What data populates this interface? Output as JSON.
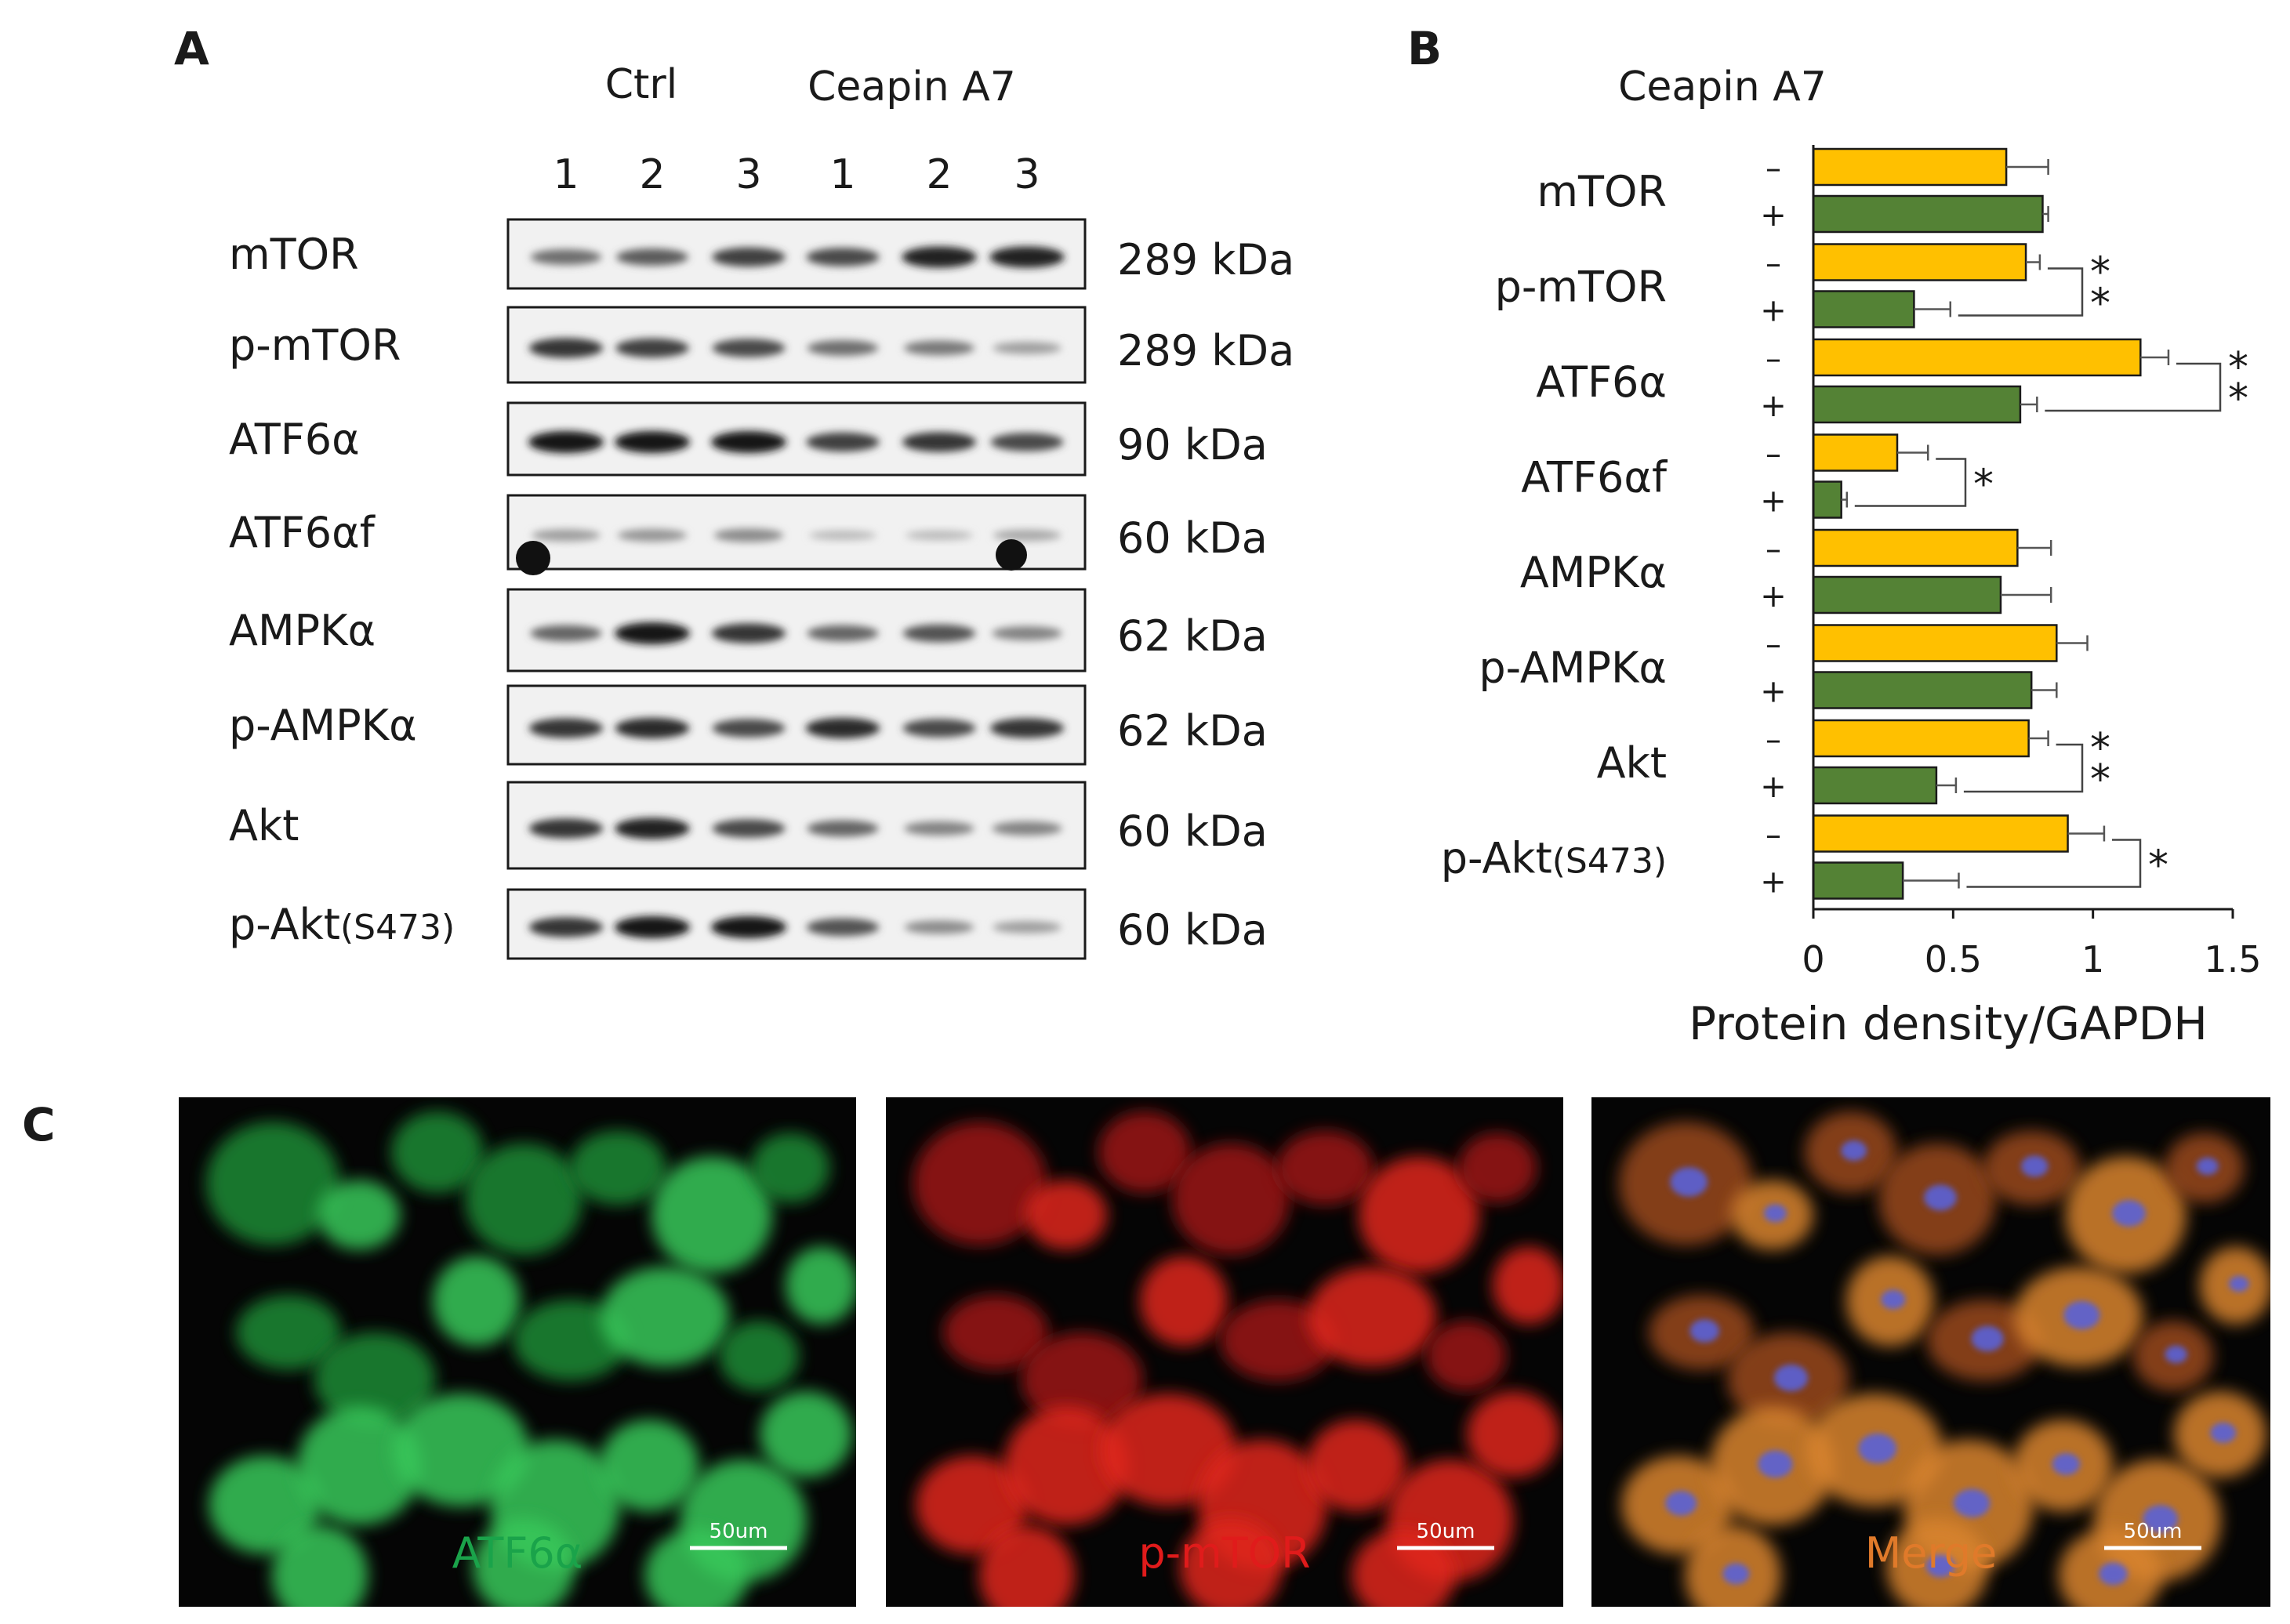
{
  "panels": {
    "a": "A",
    "b": "B",
    "c": "C"
  },
  "blot": {
    "group_labels": [
      "Ctrl",
      "Ceapin A7"
    ],
    "lane_numbers": [
      "1",
      "2",
      "3",
      "1",
      "2",
      "3"
    ],
    "rows": [
      {
        "name": "mTOR",
        "name_sub": "",
        "kda": "289 kDa",
        "band_level": [
          0.55,
          0.65,
          0.8,
          0.75,
          0.95,
          0.95
        ]
      },
      {
        "name": "p-mTOR",
        "name_sub": "",
        "kda": "289 kDa",
        "band_level": [
          0.85,
          0.8,
          0.75,
          0.55,
          0.5,
          0.3
        ]
      },
      {
        "name": "ATF6α",
        "name_sub": "",
        "kda": "90 kDa",
        "band_level": [
          1.0,
          1.0,
          1.0,
          0.8,
          0.85,
          0.75
        ]
      },
      {
        "name": "ATF6αf",
        "name_sub": "",
        "kda": "60 kDa",
        "band_level": [
          0.3,
          0.35,
          0.4,
          0.15,
          0.15,
          0.25
        ]
      },
      {
        "name": "AMPKα",
        "name_sub": "",
        "kda": "62 kDa",
        "band_level": [
          0.6,
          1.0,
          0.85,
          0.6,
          0.7,
          0.45
        ]
      },
      {
        "name": "p-AMPKα",
        "name_sub": "",
        "kda": "62 kDa",
        "band_level": [
          0.85,
          0.9,
          0.75,
          0.9,
          0.75,
          0.85
        ]
      },
      {
        "name": "Akt",
        "name_sub": "",
        "kda": "60 kDa",
        "band_level": [
          0.85,
          0.95,
          0.75,
          0.6,
          0.45,
          0.45
        ]
      },
      {
        "name": "p-Akt",
        "name_sub": "(S473)",
        "kda": "60 kDa",
        "band_level": [
          0.85,
          1.0,
          1.0,
          0.7,
          0.4,
          0.3
        ]
      }
    ]
  },
  "chart_data": {
    "type": "bar",
    "orientation": "horizontal",
    "title": "Ceapin A7",
    "xlabel": "Protein density/GAPDH",
    "xlim": [
      0,
      1.5
    ],
    "xticks": [
      "0",
      "0.5",
      "1",
      "1.5"
    ],
    "categories": [
      "mTOR",
      "p-mTOR",
      "ATF6α",
      "ATF6αf",
      "AMPKα",
      "p-AMPKα",
      "Akt",
      "p-Akt(S473)"
    ],
    "category_main": [
      "mTOR",
      "p-mTOR",
      "ATF6α",
      "ATF6αf",
      "AMPKα",
      "p-AMPKα",
      "Akt",
      "p-Akt"
    ],
    "category_sub": [
      "",
      "",
      "",
      "",
      "",
      "",
      "",
      "(S473)"
    ],
    "series": [
      {
        "name": "–",
        "color": "#FFC000",
        "values": [
          0.69,
          0.76,
          1.17,
          0.3,
          0.73,
          0.87,
          0.77,
          0.91
        ],
        "errors": [
          0.15,
          0.05,
          0.1,
          0.11,
          0.12,
          0.11,
          0.07,
          0.13
        ]
      },
      {
        "name": "+",
        "color": "#548235",
        "values": [
          0.82,
          0.36,
          0.74,
          0.1,
          0.67,
          0.78,
          0.44,
          0.32
        ],
        "errors": [
          0.02,
          0.13,
          0.06,
          0.02,
          0.18,
          0.09,
          0.07,
          0.2
        ]
      }
    ],
    "significance": [
      "",
      "**",
      "**",
      "*",
      "",
      "",
      "**",
      "*"
    ]
  },
  "micrographs": [
    {
      "label": "ATF6α",
      "label_color": "#1aa34a",
      "scale_text": "50um"
    },
    {
      "label": "p-mTOR",
      "label_color": "#e01b1b",
      "scale_text": "50um"
    },
    {
      "label": "Merge",
      "label_color": "#e07a2a",
      "scale_text": "50um"
    }
  ]
}
